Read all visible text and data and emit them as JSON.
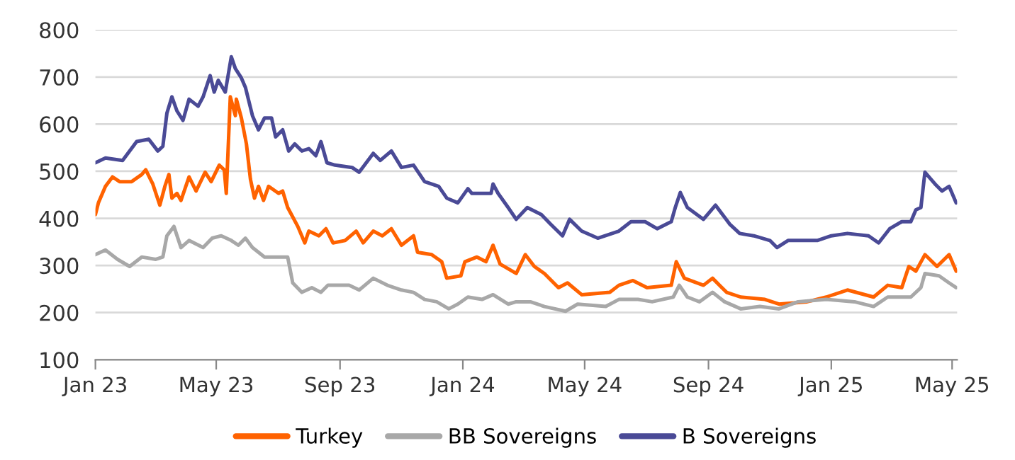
{
  "chart_data": {
    "type": "line",
    "series": [
      {
        "name": "Turkey",
        "color": "#ff6200",
        "x": [
          "2023-01-01",
          "2023-01-04",
          "2023-01-11",
          "2023-01-18",
          "2023-01-25",
          "2023-02-06",
          "2023-02-16",
          "2023-02-20",
          "2023-02-27",
          "2023-03-06",
          "2023-03-11",
          "2023-03-15",
          "2023-03-18",
          "2023-03-23",
          "2023-03-27",
          "2023-04-04",
          "2023-04-11",
          "2023-04-20",
          "2023-04-26",
          "2023-05-04",
          "2023-05-09",
          "2023-05-11",
          "2023-05-15",
          "2023-05-20",
          "2023-05-21",
          "2023-05-26",
          "2023-05-31",
          "2023-06-04",
          "2023-06-08",
          "2023-06-12",
          "2023-06-17",
          "2023-06-22",
          "2023-07-02",
          "2023-07-06",
          "2023-07-11",
          "2023-07-21",
          "2023-07-28",
          "2023-08-01",
          "2023-08-11",
          "2023-08-18",
          "2023-08-25",
          "2023-09-06",
          "2023-09-17",
          "2023-09-24",
          "2023-10-04",
          "2023-10-13",
          "2023-10-22",
          "2023-11-01",
          "2023-11-13",
          "2023-11-17",
          "2023-12-01",
          "2023-12-11",
          "2023-12-16",
          "2023-12-30",
          "2024-01-03",
          "2024-01-15",
          "2024-01-24",
          "2024-01-31",
          "2024-02-07",
          "2024-02-23",
          "2024-03-03",
          "2024-03-12",
          "2024-03-22",
          "2024-04-05",
          "2024-04-14",
          "2024-04-28",
          "2024-05-26",
          "2024-06-04",
          "2024-06-18",
          "2024-07-02",
          "2024-07-26",
          "2024-07-31",
          "2024-08-08",
          "2024-08-27",
          "2024-09-05",
          "2024-09-19",
          "2024-10-03",
          "2024-10-27",
          "2024-11-10",
          "2024-12-08",
          "2024-12-27",
          "2025-01-17",
          "2025-02-12",
          "2025-02-26",
          "2025-03-12",
          "2025-03-19",
          "2025-03-26",
          "2025-04-04",
          "2025-04-16",
          "2025-04-28",
          "2025-05-05"
        ],
        "values": [
          408,
          433,
          468,
          488,
          478,
          478,
          493,
          503,
          473,
          428,
          468,
          493,
          443,
          453,
          438,
          488,
          458,
          498,
          478,
          513,
          503,
          453,
          658,
          618,
          653,
          613,
          558,
          483,
          443,
          468,
          438,
          468,
          453,
          458,
          423,
          383,
          348,
          373,
          363,
          378,
          348,
          353,
          373,
          348,
          373,
          363,
          378,
          343,
          363,
          328,
          323,
          308,
          273,
          278,
          308,
          318,
          308,
          343,
          303,
          283,
          323,
          298,
          283,
          253,
          263,
          238,
          243,
          258,
          268,
          253,
          258,
          308,
          273,
          258,
          273,
          243,
          233,
          228,
          218,
          223,
          233,
          248,
          233,
          258,
          253,
          298,
          288,
          323,
          298,
          323,
          288
        ]
      },
      {
        "name": "BB Sovereigns",
        "color": "#a8a8a8",
        "x": [
          "2023-01-01",
          "2023-01-11",
          "2023-01-23",
          "2023-02-04",
          "2023-02-16",
          "2023-03-02",
          "2023-03-09",
          "2023-03-13",
          "2023-03-20",
          "2023-03-27",
          "2023-04-04",
          "2023-04-18",
          "2023-04-27",
          "2023-05-06",
          "2023-05-16",
          "2023-05-23",
          "2023-05-30",
          "2023-06-06",
          "2023-06-18",
          "2023-07-02",
          "2023-07-11",
          "2023-07-16",
          "2023-07-25",
          "2023-08-04",
          "2023-08-13",
          "2023-08-20",
          "2023-09-10",
          "2023-09-20",
          "2023-10-04",
          "2023-10-18",
          "2023-11-01",
          "2023-11-13",
          "2023-11-24",
          "2023-12-06",
          "2023-12-18",
          "2023-12-27",
          "2024-01-06",
          "2024-01-20",
          "2024-01-31",
          "2024-02-15",
          "2024-02-23",
          "2024-03-08",
          "2024-03-22",
          "2024-04-12",
          "2024-04-24",
          "2024-05-22",
          "2024-06-04",
          "2024-06-23",
          "2024-07-07",
          "2024-07-28",
          "2024-08-03",
          "2024-08-11",
          "2024-08-23",
          "2024-09-05",
          "2024-09-17",
          "2024-10-03",
          "2024-10-22",
          "2024-11-10",
          "2024-11-29",
          "2024-12-27",
          "2025-01-24",
          "2025-02-12",
          "2025-02-26",
          "2025-03-21",
          "2025-03-31",
          "2025-04-04",
          "2025-04-18",
          "2025-04-28",
          "2025-05-05"
        ],
        "values": [
          323,
          333,
          313,
          298,
          318,
          313,
          318,
          363,
          383,
          338,
          353,
          338,
          358,
          363,
          353,
          343,
          358,
          338,
          318,
          318,
          318,
          263,
          243,
          253,
          243,
          258,
          258,
          248,
          273,
          258,
          248,
          243,
          228,
          223,
          208,
          218,
          233,
          228,
          238,
          218,
          223,
          223,
          213,
          203,
          218,
          213,
          228,
          228,
          223,
          233,
          258,
          233,
          223,
          243,
          223,
          208,
          213,
          208,
          223,
          228,
          223,
          213,
          233,
          233,
          253,
          283,
          278,
          263,
          253
        ]
      },
      {
        "name": "B Sovereigns",
        "color": "#4a4a96",
        "x": [
          "2023-01-01",
          "2023-01-11",
          "2023-01-28",
          "2023-02-11",
          "2023-02-23",
          "2023-03-04",
          "2023-03-09",
          "2023-03-13",
          "2023-03-18",
          "2023-03-23",
          "2023-03-29",
          "2023-04-04",
          "2023-04-13",
          "2023-04-18",
          "2023-04-25",
          "2023-04-29",
          "2023-05-03",
          "2023-05-10",
          "2023-05-16",
          "2023-05-20",
          "2023-05-26",
          "2023-05-30",
          "2023-06-06",
          "2023-06-12",
          "2023-06-18",
          "2023-06-25",
          "2023-06-29",
          "2023-07-06",
          "2023-07-12",
          "2023-07-18",
          "2023-07-25",
          "2023-08-01",
          "2023-08-08",
          "2023-08-13",
          "2023-08-19",
          "2023-08-27",
          "2023-09-13",
          "2023-09-20",
          "2023-10-04",
          "2023-10-11",
          "2023-10-22",
          "2023-11-01",
          "2023-11-13",
          "2023-11-24",
          "2023-12-08",
          "2023-12-16",
          "2023-12-27",
          "2024-01-06",
          "2024-01-10",
          "2024-01-29",
          "2024-01-31",
          "2024-02-05",
          "2024-02-15",
          "2024-02-23",
          "2024-03-05",
          "2024-03-19",
          "2024-03-28",
          "2024-04-09",
          "2024-04-16",
          "2024-04-28",
          "2024-05-14",
          "2024-06-04",
          "2024-06-16",
          "2024-06-30",
          "2024-07-12",
          "2024-07-26",
          "2024-07-30",
          "2024-08-04",
          "2024-08-11",
          "2024-08-27",
          "2024-09-08",
          "2024-09-22",
          "2024-10-02",
          "2024-10-16",
          "2024-11-01",
          "2024-11-08",
          "2024-11-19",
          "2024-12-03",
          "2024-12-18",
          "2025-01-01",
          "2025-01-17",
          "2025-02-07",
          "2025-02-17",
          "2025-02-28",
          "2025-03-12",
          "2025-03-21",
          "2025-03-26",
          "2025-03-31",
          "2025-04-04",
          "2025-04-14",
          "2025-04-21",
          "2025-04-28",
          "2025-05-05"
        ],
        "values": [
          518,
          528,
          523,
          563,
          568,
          543,
          553,
          623,
          658,
          628,
          608,
          653,
          638,
          658,
          703,
          668,
          693,
          668,
          743,
          718,
          698,
          678,
          618,
          588,
          613,
          613,
          573,
          588,
          543,
          558,
          543,
          548,
          533,
          563,
          518,
          513,
          508,
          498,
          538,
          523,
          543,
          508,
          513,
          478,
          468,
          443,
          433,
          463,
          453,
          453,
          473,
          453,
          423,
          398,
          423,
          408,
          388,
          363,
          398,
          373,
          358,
          373,
          393,
          393,
          378,
          393,
          423,
          455,
          423,
          398,
          428,
          388,
          368,
          363,
          353,
          338,
          353,
          353,
          353,
          363,
          368,
          363,
          348,
          378,
          393,
          393,
          418,
          423,
          498,
          473,
          458,
          468,
          433
        ]
      }
    ],
    "xlim": [
      "2023-01-01",
      "2025-05-06"
    ],
    "xticks": [
      {
        "value": "2023-01-01",
        "label": "Jan 23"
      },
      {
        "value": "2023-05-01",
        "label": "May 23"
      },
      {
        "value": "2023-09-01",
        "label": "Sep 23"
      },
      {
        "value": "2024-01-01",
        "label": "Jan 24"
      },
      {
        "value": "2024-05-01",
        "label": "May 24"
      },
      {
        "value": "2024-09-01",
        "label": "Sep 24"
      },
      {
        "value": "2025-01-01",
        "label": "Jan 25"
      },
      {
        "value": "2025-05-01",
        "label": "May 25"
      }
    ],
    "ylim": [
      100,
      800
    ],
    "yticks": [
      100,
      200,
      300,
      400,
      500,
      600,
      700,
      800
    ],
    "grid": "y",
    "legend": "bottom"
  }
}
